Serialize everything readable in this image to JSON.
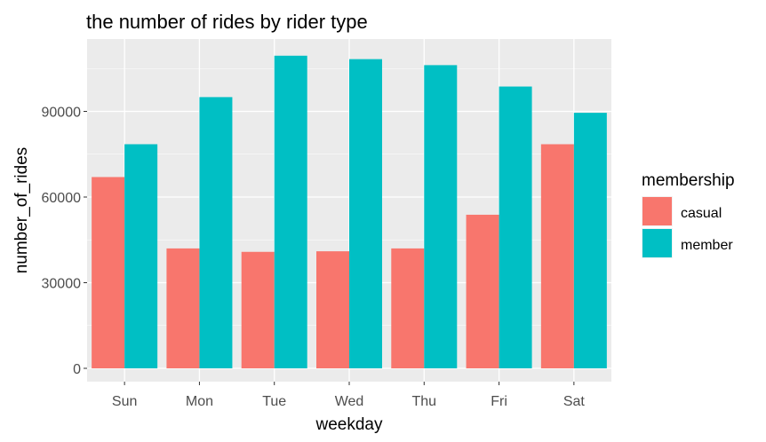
{
  "chart_data": {
    "type": "bar",
    "title": "the number of rides by rider type",
    "xlabel": "weekday",
    "ylabel": "number_of_rides",
    "categories": [
      "Sun",
      "Mon",
      "Tue",
      "Wed",
      "Thu",
      "Fri",
      "Sat"
    ],
    "series": [
      {
        "name": "casual",
        "color": "#F8766D",
        "values": [
          67000,
          42000,
          40800,
          41000,
          42000,
          53800,
          78500
        ]
      },
      {
        "name": "member",
        "color": "#00BFC4",
        "values": [
          78500,
          95000,
          109500,
          108300,
          106200,
          98700,
          89500
        ]
      }
    ],
    "ylim": [
      0,
      114000
    ],
    "yticks": [
      0,
      30000,
      60000,
      90000
    ],
    "ytick_labels": [
      "0",
      "30000",
      "60000",
      "90000"
    ],
    "grid": true,
    "legend": {
      "title": "membership",
      "position": "right"
    }
  }
}
